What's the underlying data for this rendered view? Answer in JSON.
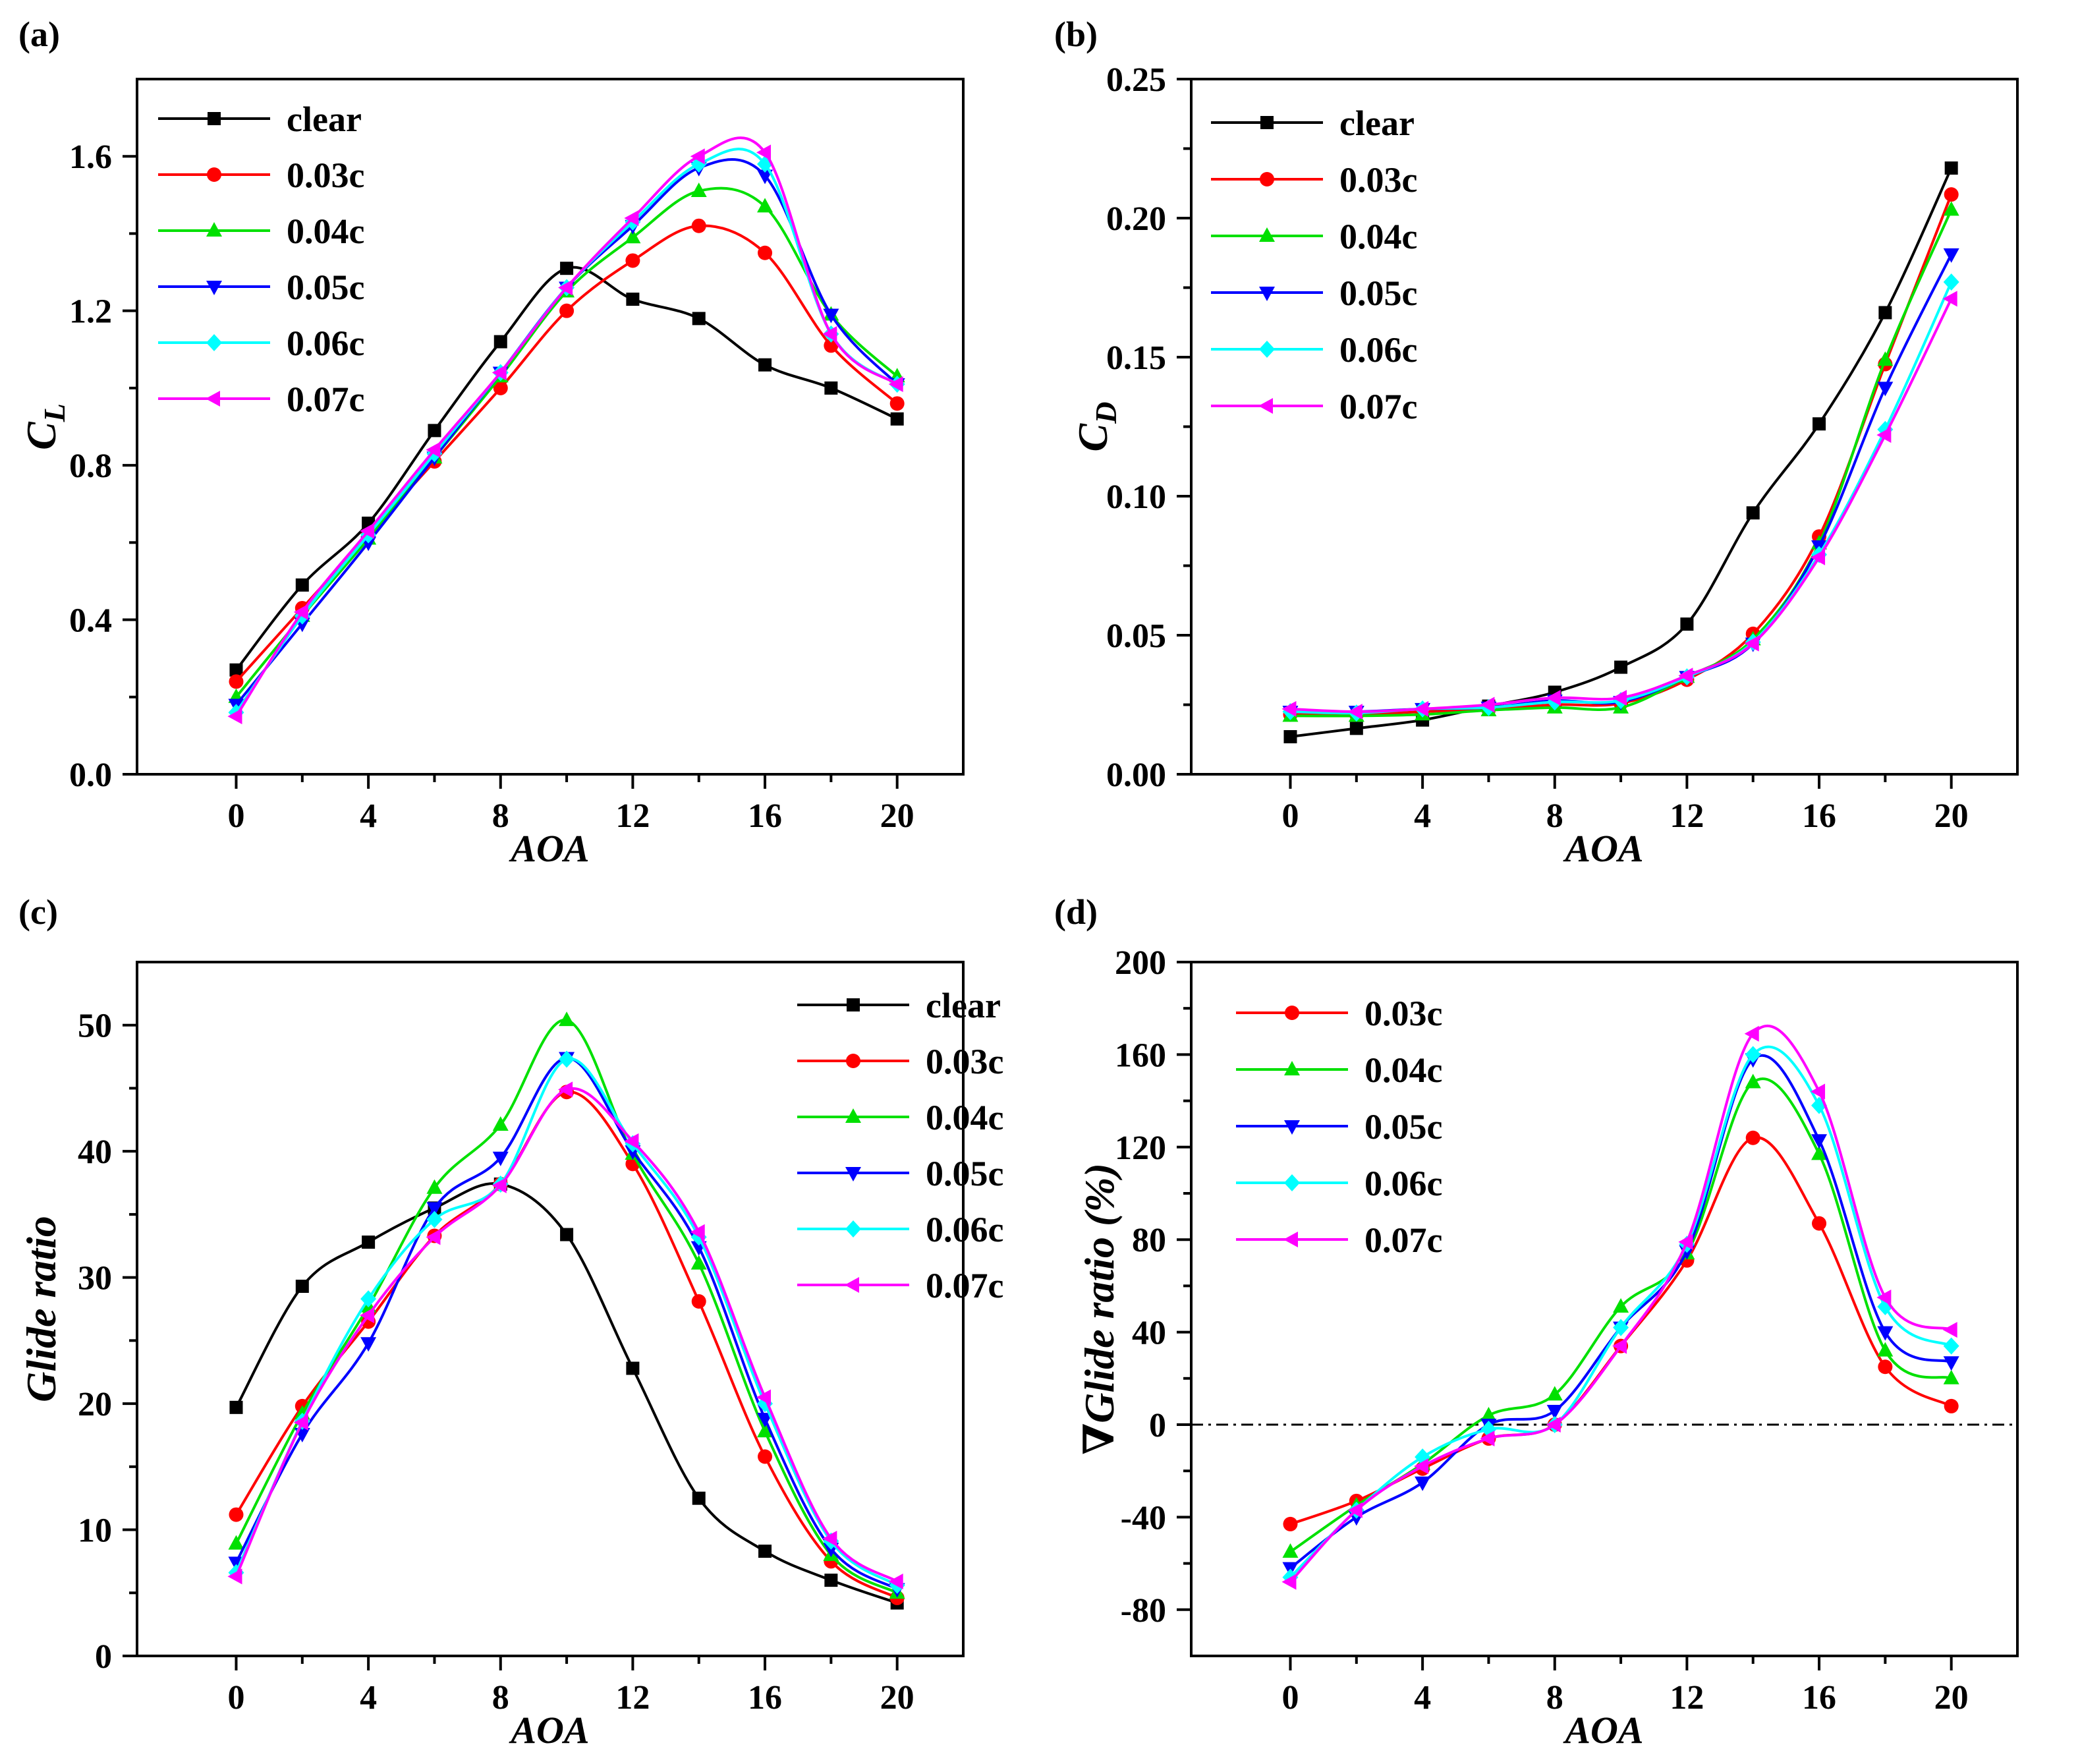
{
  "figure": {
    "series_colors": {
      "clear": "#000000",
      "0.03c": "#ff0000",
      "0.04c": "#00e000",
      "0.05c": "#0000ff",
      "0.06c": "#00ffff",
      "0.07c": "#ff00ff"
    },
    "markers": {
      "clear": "square",
      "0.03c": "circle",
      "0.04c": "triangle-up",
      "0.05c": "triangle-down",
      "0.06c": "diamond",
      "0.07c": "triangle-left"
    }
  },
  "chart_data": [
    {
      "panel_label": "(a)",
      "type": "line",
      "xlabel": "AOA",
      "ylabel": "C",
      "ylabel_sub": "L",
      "xlim": [
        -3,
        22
      ],
      "ylim": [
        0,
        1.8
      ],
      "xticks": [
        0,
        4,
        8,
        12,
        16,
        20
      ],
      "yticks": [
        0.0,
        0.4,
        0.8,
        1.2,
        1.6
      ],
      "ytick_labels": [
        "0.0",
        "0.4",
        "0.8",
        "1.2",
        "1.6"
      ],
      "legend_position": "top-left",
      "x": [
        0,
        2,
        4,
        6,
        8,
        10,
        12,
        14,
        16,
        18,
        20
      ],
      "series": [
        {
          "name": "clear",
          "values": [
            0.27,
            0.49,
            0.65,
            0.89,
            1.12,
            1.31,
            1.23,
            1.18,
            1.06,
            1.0,
            0.92
          ]
        },
        {
          "name": "0.03c",
          "values": [
            0.24,
            0.43,
            0.62,
            0.81,
            1.0,
            1.2,
            1.33,
            1.42,
            1.35,
            1.11,
            0.96
          ]
        },
        {
          "name": "0.04c",
          "values": [
            0.2,
            0.41,
            0.61,
            0.82,
            1.03,
            1.25,
            1.39,
            1.51,
            1.47,
            1.19,
            1.03
          ]
        },
        {
          "name": "0.05c",
          "values": [
            0.18,
            0.39,
            0.6,
            0.82,
            1.04,
            1.26,
            1.42,
            1.57,
            1.55,
            1.19,
            1.01
          ]
        },
        {
          "name": "0.06c",
          "values": [
            0.16,
            0.41,
            0.62,
            0.83,
            1.04,
            1.26,
            1.43,
            1.58,
            1.58,
            1.14,
            1.01
          ]
        },
        {
          "name": "0.07c",
          "values": [
            0.15,
            0.42,
            0.63,
            0.84,
            1.04,
            1.26,
            1.44,
            1.6,
            1.61,
            1.14,
            1.01
          ]
        }
      ]
    },
    {
      "panel_label": "(b)",
      "type": "line",
      "xlabel": "AOA",
      "ylabel": "C",
      "ylabel_sub": "D",
      "xlim": [
        -3,
        22
      ],
      "ylim": [
        0,
        0.25
      ],
      "xticks": [
        0,
        4,
        8,
        12,
        16,
        20
      ],
      "yticks": [
        0.0,
        0.05,
        0.1,
        0.15,
        0.2,
        0.25
      ],
      "ytick_labels": [
        "0.00",
        "0.05",
        "0.10",
        "0.15",
        "0.20",
        "0.25"
      ],
      "legend_position": "top-left",
      "x": [
        0,
        2,
        4,
        6,
        8,
        10,
        12,
        14,
        16,
        18,
        20
      ],
      "series": [
        {
          "name": "clear",
          "values": [
            0.0135,
            0.0165,
            0.0195,
            0.0245,
            0.0295,
            0.0385,
            0.054,
            0.094,
            0.126,
            0.166,
            0.218
          ]
        },
        {
          "name": "0.03c",
          "values": [
            0.0215,
            0.0215,
            0.0225,
            0.0235,
            0.025,
            0.0255,
            0.034,
            0.0505,
            0.0855,
            0.1475,
            0.2085
          ]
        },
        {
          "name": "0.04c",
          "values": [
            0.021,
            0.021,
            0.0215,
            0.023,
            0.024,
            0.024,
            0.035,
            0.0485,
            0.083,
            0.149,
            0.203
          ]
        },
        {
          "name": "0.05c",
          "values": [
            0.0225,
            0.0225,
            0.0235,
            0.024,
            0.0265,
            0.026,
            0.035,
            0.047,
            0.082,
            0.139,
            0.187
          ]
        },
        {
          "name": "0.06c",
          "values": [
            0.0225,
            0.022,
            0.0235,
            0.024,
            0.026,
            0.0265,
            0.035,
            0.0475,
            0.079,
            0.124,
            0.177
          ]
        },
        {
          "name": "0.07c",
          "values": [
            0.0235,
            0.0225,
            0.0235,
            0.025,
            0.0275,
            0.0275,
            0.0355,
            0.047,
            0.078,
            0.122,
            0.171
          ]
        }
      ]
    },
    {
      "panel_label": "(c)",
      "type": "line",
      "xlabel": "AOA",
      "ylabel": "Glide ratio",
      "xlim": [
        -3,
        22
      ],
      "ylim": [
        0,
        55
      ],
      "xticks": [
        0,
        4,
        8,
        12,
        16,
        20
      ],
      "yticks": [
        0,
        10,
        20,
        30,
        40,
        50
      ],
      "ytick_labels": [
        "0",
        "10",
        "20",
        "30",
        "40",
        "50"
      ],
      "legend_position": "top-right",
      "x": [
        0,
        2,
        4,
        6,
        8,
        10,
        12,
        14,
        16,
        18,
        20
      ],
      "series": [
        {
          "name": "clear",
          "values": [
            19.7,
            29.3,
            32.8,
            35.5,
            37.4,
            33.4,
            22.8,
            12.5,
            8.3,
            6.0,
            4.2
          ]
        },
        {
          "name": "0.03c",
          "values": [
            11.2,
            19.8,
            26.5,
            33.3,
            37.4,
            44.7,
            39.0,
            28.1,
            15.8,
            7.5,
            4.6
          ]
        },
        {
          "name": "0.04c",
          "values": [
            8.9,
            19.2,
            27.7,
            37.1,
            42.1,
            50.4,
            39.8,
            31.1,
            17.8,
            8.0,
            5.0
          ]
        },
        {
          "name": "0.05c",
          "values": [
            7.4,
            17.6,
            24.8,
            35.5,
            39.5,
            47.4,
            40.0,
            32.4,
            18.8,
            8.5,
            5.3
          ]
        },
        {
          "name": "0.06c",
          "values": [
            6.6,
            18.6,
            28.3,
            34.6,
            37.4,
            47.3,
            40.6,
            33.2,
            20.0,
            9.1,
            5.6
          ]
        },
        {
          "name": "0.07c",
          "values": [
            6.3,
            18.5,
            27.0,
            33.2,
            37.3,
            44.9,
            40.8,
            33.6,
            20.5,
            9.3,
            5.9
          ]
        }
      ]
    },
    {
      "panel_label": "(d)",
      "type": "line",
      "xlabel": "AOA",
      "ylabel": "∇Glide ratio (%)",
      "xlim": [
        -3,
        22
      ],
      "ylim": [
        -100,
        200
      ],
      "xticks": [
        0,
        4,
        8,
        12,
        16,
        20
      ],
      "yticks": [
        -80,
        -40,
        0,
        40,
        80,
        120,
        160,
        200
      ],
      "ytick_labels": [
        "-80",
        "-40",
        "0",
        "40",
        "80",
        "120",
        "160",
        "200"
      ],
      "reference_line": 0,
      "legend_position": "top-left",
      "x": [
        0,
        2,
        4,
        6,
        8,
        10,
        12,
        14,
        16,
        18,
        20
      ],
      "series": [
        {
          "name": "0.03c",
          "values": [
            -43,
            -33,
            -19,
            -6,
            0,
            34,
            71,
            124,
            87,
            25,
            8
          ]
        },
        {
          "name": "0.04c",
          "values": [
            -55,
            -35,
            -17,
            4,
            13,
            51,
            74,
            148,
            117,
            32,
            20
          ]
        },
        {
          "name": "0.05c",
          "values": [
            -62,
            -40,
            -25,
            0,
            6,
            42,
            75,
            158,
            123,
            40,
            27
          ]
        },
        {
          "name": "0.06c",
          "values": [
            -66,
            -37,
            -14,
            -2,
            0,
            42,
            78,
            160,
            138,
            51,
            34
          ]
        },
        {
          "name": "0.07c",
          "values": [
            -68,
            -37,
            -18,
            -6,
            0,
            34,
            79,
            169,
            144,
            55,
            41
          ]
        }
      ]
    }
  ]
}
